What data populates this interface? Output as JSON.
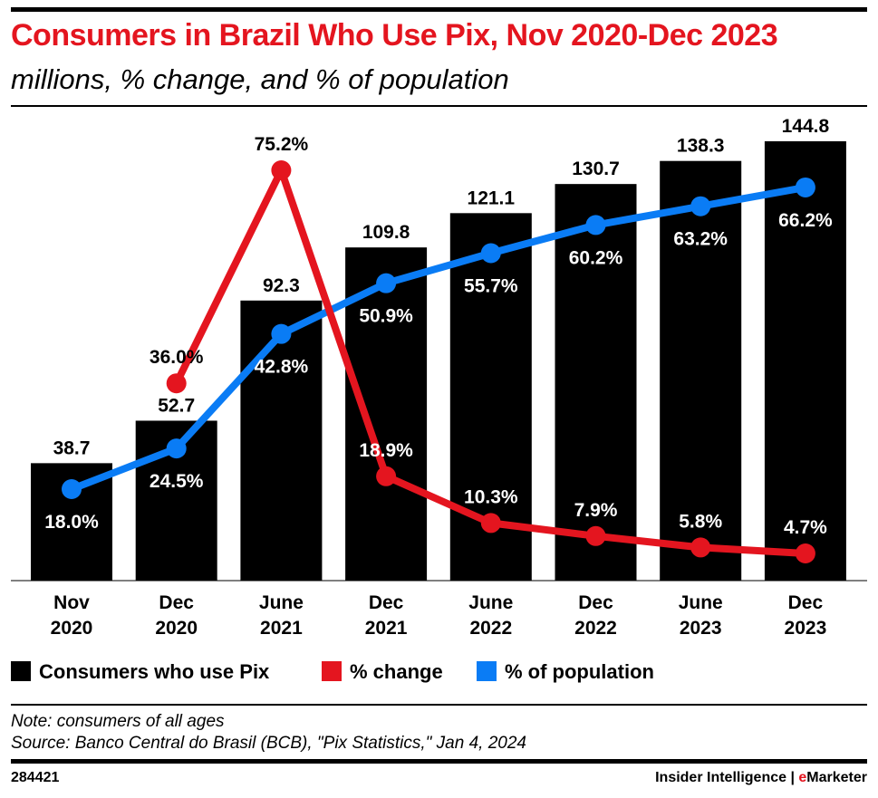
{
  "chart_data": {
    "type": "bar+line",
    "title": "Consumers in Brazil Who Use Pix, Nov 2020-Dec 2023",
    "subtitle": "millions, % change, and % of population",
    "categories": [
      [
        "Nov",
        "2020"
      ],
      [
        "Dec",
        "2020"
      ],
      [
        "June",
        "2021"
      ],
      [
        "Dec",
        "2021"
      ],
      [
        "June",
        "2022"
      ],
      [
        "Dec",
        "2022"
      ],
      [
        "June",
        "2023"
      ],
      [
        "Dec",
        "2023"
      ]
    ],
    "series": [
      {
        "name": "Consumers who use Pix",
        "type": "bar",
        "color": "#000000",
        "values": [
          38.7,
          52.7,
          92.3,
          109.8,
          121.1,
          130.7,
          138.3,
          144.8
        ],
        "labels": [
          "38.7",
          "52.7",
          "92.3",
          "109.8",
          "121.1",
          "130.7",
          "138.3",
          "144.8"
        ]
      },
      {
        "name": "% change",
        "type": "line",
        "color": "#e4151f",
        "values": [
          null,
          36.0,
          75.2,
          18.9,
          10.3,
          7.9,
          5.8,
          4.7
        ],
        "labels": [
          "",
          "36.0%",
          "75.2%",
          "18.9%",
          "10.3%",
          "7.9%",
          "5.8%",
          "4.7%"
        ]
      },
      {
        "name": "% of population",
        "type": "line",
        "color": "#0a7cf5",
        "values": [
          18.0,
          24.5,
          42.8,
          50.9,
          55.7,
          60.2,
          63.2,
          66.2
        ],
        "labels": [
          "18.0%",
          "24.5%",
          "42.8%",
          "50.9%",
          "55.7%",
          "60.2%",
          "63.2%",
          "66.2%"
        ]
      }
    ],
    "legend_position": "bottom",
    "grid": false
  },
  "footer": {
    "note": "Note: consumers of all ages",
    "source": "Source: Banco Central do Brasil (BCB), \"Pix Statistics,\" Jan 4, 2024",
    "chart_id": "284421",
    "brand_left": "Insider Intelligence | ",
    "brand_e": "e",
    "brand_right": "Marketer"
  }
}
